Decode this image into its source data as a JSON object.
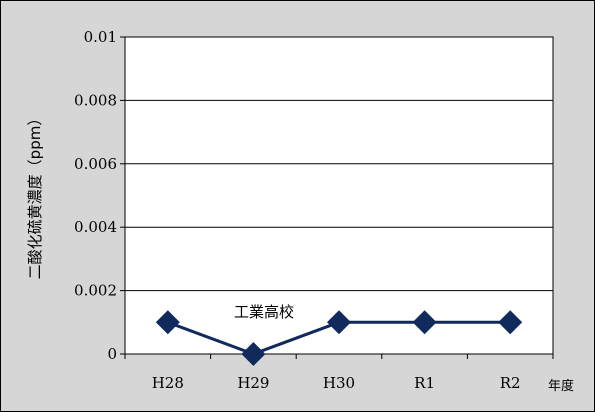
{
  "chart_data": {
    "type": "line",
    "ylabel": "二酸化硫黄濃度（ppm）",
    "xunit": "年度",
    "categories": [
      "H28",
      "H29",
      "H30",
      "R1",
      "R2"
    ],
    "ylim": [
      0,
      0.01
    ],
    "yticks": [
      0,
      0.002,
      0.004,
      0.006,
      0.008,
      0.01
    ],
    "ytick_labels": [
      "0",
      "0.002",
      "0.004",
      "0.006",
      "0.008",
      "0.01"
    ],
    "grid": true,
    "series": [
      {
        "name": "工業高校",
        "values": [
          0.001,
          0,
          0.001,
          0.001,
          0.001
        ],
        "color": "#102a5e",
        "marker": "diamond"
      }
    ],
    "colors": {
      "plot_bg": "#ffffff",
      "outer_bg": "#d6d6d6",
      "grid": "#000000",
      "series": "#102a5e"
    }
  }
}
